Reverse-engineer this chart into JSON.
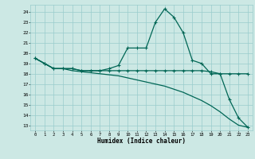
{
  "xlabel": "Humidex (Indice chaleur)",
  "bg_color": "#cce8e4",
  "grid_color": "#99cccc",
  "line_color": "#006655",
  "x_ticks": [
    0,
    1,
    2,
    3,
    4,
    5,
    6,
    7,
    8,
    9,
    10,
    11,
    12,
    13,
    14,
    15,
    16,
    17,
    18,
    19,
    20,
    21,
    22,
    23
  ],
  "y_ticks": [
    13,
    14,
    15,
    16,
    17,
    18,
    19,
    20,
    21,
    22,
    23,
    24
  ],
  "series1": [
    19.5,
    19.0,
    18.5,
    18.5,
    18.5,
    18.3,
    18.3,
    18.3,
    18.5,
    18.8,
    20.5,
    20.5,
    20.5,
    23.0,
    24.3,
    23.5,
    22.0,
    19.3,
    19.0,
    18.0,
    18.0,
    15.5,
    13.7,
    12.8
  ],
  "series2": [
    19.5,
    19.0,
    18.5,
    18.5,
    18.5,
    18.3,
    18.3,
    18.3,
    18.3,
    18.3,
    18.3,
    18.3,
    18.3,
    18.3,
    18.3,
    18.3,
    18.3,
    18.3,
    18.3,
    18.2,
    18.0,
    18.0,
    18.0,
    18.0
  ],
  "series3": [
    19.5,
    19.0,
    18.5,
    18.5,
    18.3,
    18.2,
    18.1,
    18.0,
    17.9,
    17.8,
    17.6,
    17.4,
    17.2,
    17.0,
    16.8,
    16.5,
    16.2,
    15.8,
    15.4,
    14.9,
    14.3,
    13.6,
    13.0,
    12.8
  ]
}
